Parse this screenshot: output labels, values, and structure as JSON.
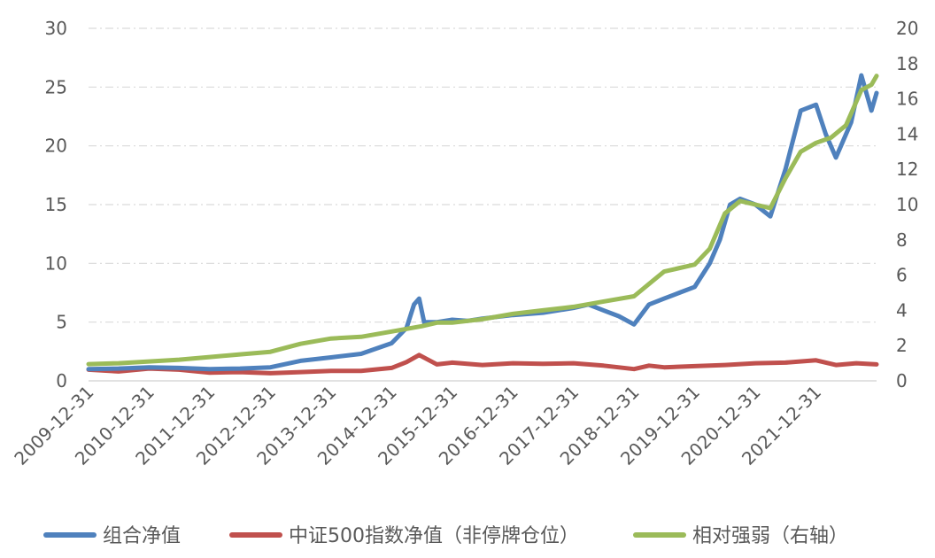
{
  "chart_data": {
    "type": "line",
    "title": "",
    "xlabel": "",
    "ylabel": "",
    "y_left": {
      "lim": [
        0,
        30
      ],
      "ticks": [
        0,
        5,
        10,
        15,
        20,
        25,
        30
      ]
    },
    "y_right": {
      "lim": [
        0,
        20
      ],
      "ticks": [
        0,
        2,
        4,
        6,
        8,
        10,
        12,
        14,
        16,
        18,
        20
      ]
    },
    "x_range": [
      "2009-12-31",
      "2022-12-31"
    ],
    "x_ticks": [
      "2009-12-31",
      "2010-12-31",
      "2011-12-31",
      "2012-12-31",
      "2013-12-31",
      "2014-12-31",
      "2015-12-31",
      "2016-12-31",
      "2017-12-31",
      "2018-12-31",
      "2019-12-31",
      "2020-12-31",
      "2021-12-31"
    ],
    "grid": "horizontal-dashed",
    "legend_position": "bottom",
    "series": [
      {
        "name": "组合净值",
        "axis": "left",
        "color": "#4F81BD",
        "points": [
          [
            "2009-12-31",
            1.0
          ],
          [
            "2010-06-30",
            1.05
          ],
          [
            "2010-12-31",
            1.15
          ],
          [
            "2011-06-30",
            1.1
          ],
          [
            "2011-12-31",
            1.0
          ],
          [
            "2012-06-30",
            1.05
          ],
          [
            "2012-12-31",
            1.15
          ],
          [
            "2013-06-30",
            1.7
          ],
          [
            "2013-12-31",
            2.0
          ],
          [
            "2014-06-30",
            2.3
          ],
          [
            "2014-12-31",
            3.2
          ],
          [
            "2015-03-31",
            4.5
          ],
          [
            "2015-05-15",
            6.5
          ],
          [
            "2015-06-15",
            7.0
          ],
          [
            "2015-07-15",
            5.0
          ],
          [
            "2015-09-30",
            5.0
          ],
          [
            "2015-12-31",
            5.2
          ],
          [
            "2016-03-31",
            5.1
          ],
          [
            "2016-06-30",
            5.3
          ],
          [
            "2016-12-31",
            5.6
          ],
          [
            "2017-06-30",
            5.8
          ],
          [
            "2017-12-31",
            6.2
          ],
          [
            "2018-03-31",
            6.5
          ],
          [
            "2018-06-30",
            6.0
          ],
          [
            "2018-09-30",
            5.5
          ],
          [
            "2018-12-31",
            4.8
          ],
          [
            "2019-03-31",
            6.5
          ],
          [
            "2019-06-30",
            7.0
          ],
          [
            "2019-09-30",
            7.5
          ],
          [
            "2019-12-31",
            8.0
          ],
          [
            "2020-03-31",
            10.0
          ],
          [
            "2020-05-31",
            12.0
          ],
          [
            "2020-07-31",
            15.0
          ],
          [
            "2020-09-30",
            15.5
          ],
          [
            "2020-12-31",
            15.0
          ],
          [
            "2021-03-31",
            14.0
          ],
          [
            "2021-06-30",
            18.0
          ],
          [
            "2021-09-30",
            23.0
          ],
          [
            "2021-12-31",
            23.5
          ],
          [
            "2022-02-28",
            21.0
          ],
          [
            "2022-04-30",
            19.0
          ],
          [
            "2022-07-31",
            22.0
          ],
          [
            "2022-09-30",
            26.0
          ],
          [
            "2022-11-30",
            23.0
          ],
          [
            "2022-12-31",
            24.5
          ]
        ]
      },
      {
        "name": "中证500指数净值（非停牌仓位）",
        "axis": "left",
        "color": "#C0504D",
        "points": [
          [
            "2009-12-31",
            0.95
          ],
          [
            "2010-06-30",
            0.8
          ],
          [
            "2010-12-31",
            1.05
          ],
          [
            "2011-06-30",
            0.95
          ],
          [
            "2011-12-31",
            0.7
          ],
          [
            "2012-06-30",
            0.75
          ],
          [
            "2012-12-31",
            0.65
          ],
          [
            "2013-06-30",
            0.75
          ],
          [
            "2013-12-31",
            0.85
          ],
          [
            "2014-06-30",
            0.85
          ],
          [
            "2014-12-31",
            1.1
          ],
          [
            "2015-03-31",
            1.6
          ],
          [
            "2015-06-15",
            2.2
          ],
          [
            "2015-09-30",
            1.4
          ],
          [
            "2015-12-31",
            1.55
          ],
          [
            "2016-06-30",
            1.35
          ],
          [
            "2016-12-31",
            1.5
          ],
          [
            "2017-06-30",
            1.45
          ],
          [
            "2017-12-31",
            1.5
          ],
          [
            "2018-06-30",
            1.3
          ],
          [
            "2018-12-31",
            1.0
          ],
          [
            "2019-03-31",
            1.3
          ],
          [
            "2019-06-30",
            1.15
          ],
          [
            "2019-12-31",
            1.25
          ],
          [
            "2020-06-30",
            1.35
          ],
          [
            "2020-12-31",
            1.5
          ],
          [
            "2021-06-30",
            1.55
          ],
          [
            "2021-12-31",
            1.75
          ],
          [
            "2022-04-30",
            1.35
          ],
          [
            "2022-08-31",
            1.5
          ],
          [
            "2022-12-31",
            1.4
          ]
        ]
      },
      {
        "name": "相对强弱（右轴）",
        "axis": "right",
        "color": "#9BBB59",
        "points": [
          [
            "2009-12-31",
            0.95
          ],
          [
            "2010-06-30",
            1.0
          ],
          [
            "2010-12-31",
            1.1
          ],
          [
            "2011-06-30",
            1.2
          ],
          [
            "2011-12-31",
            1.35
          ],
          [
            "2012-06-30",
            1.5
          ],
          [
            "2012-12-31",
            1.65
          ],
          [
            "2013-06-30",
            2.1
          ],
          [
            "2013-12-31",
            2.4
          ],
          [
            "2014-06-30",
            2.5
          ],
          [
            "2014-12-31",
            2.8
          ],
          [
            "2015-06-30",
            3.1
          ],
          [
            "2015-09-30",
            3.3
          ],
          [
            "2015-12-31",
            3.3
          ],
          [
            "2016-06-30",
            3.5
          ],
          [
            "2016-12-31",
            3.8
          ],
          [
            "2017-06-30",
            4.0
          ],
          [
            "2017-12-31",
            4.2
          ],
          [
            "2018-06-30",
            4.5
          ],
          [
            "2018-12-31",
            4.8
          ],
          [
            "2019-03-31",
            5.5
          ],
          [
            "2019-06-30",
            6.2
          ],
          [
            "2019-12-31",
            6.6
          ],
          [
            "2020-03-31",
            7.5
          ],
          [
            "2020-06-30",
            9.5
          ],
          [
            "2020-09-30",
            10.2
          ],
          [
            "2020-12-31",
            10.0
          ],
          [
            "2021-03-31",
            9.8
          ],
          [
            "2021-06-30",
            11.5
          ],
          [
            "2021-09-30",
            13.0
          ],
          [
            "2021-12-31",
            13.5
          ],
          [
            "2022-03-31",
            13.8
          ],
          [
            "2022-06-30",
            14.5
          ],
          [
            "2022-09-30",
            16.5
          ],
          [
            "2022-11-30",
            16.8
          ],
          [
            "2022-12-31",
            17.3
          ]
        ]
      }
    ]
  }
}
